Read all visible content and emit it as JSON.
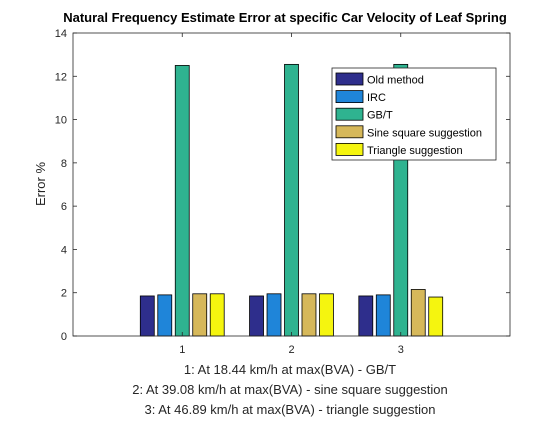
{
  "chart_data": {
    "type": "bar",
    "title": "Natural Frequency Estimate Error at specific Car Velocity of Leaf Spring",
    "ylabel": "Error %",
    "xlabel_lines": [
      "1: At 18.44 km/h at max(BVA) - GB/T",
      "2: At 39.08 km/h at max(BVA) - sine square suggestion",
      "3: At 46.89 km/h at max(BVA) - triangle suggestion"
    ],
    "categories": [
      "1",
      "2",
      "3"
    ],
    "ylim": [
      0,
      14
    ],
    "yticks": [
      0,
      2,
      4,
      6,
      8,
      10,
      12,
      14
    ],
    "grid": false,
    "legend_position": "top-right",
    "series": [
      {
        "name": "Old method",
        "color": "#2e2e8c",
        "values": [
          1.85,
          1.85,
          1.85
        ]
      },
      {
        "name": "IRC",
        "color": "#1f85d9",
        "values": [
          1.9,
          1.95,
          1.9
        ]
      },
      {
        "name": "GB/T",
        "color": "#2fb390",
        "values": [
          12.5,
          12.55,
          12.55
        ]
      },
      {
        "name": "Sine square suggestion",
        "color": "#d6b85a",
        "values": [
          1.95,
          1.95,
          2.15
        ]
      },
      {
        "name": "Triangle suggestion",
        "color": "#f5f50f",
        "values": [
          1.95,
          1.95,
          1.8
        ]
      }
    ]
  }
}
